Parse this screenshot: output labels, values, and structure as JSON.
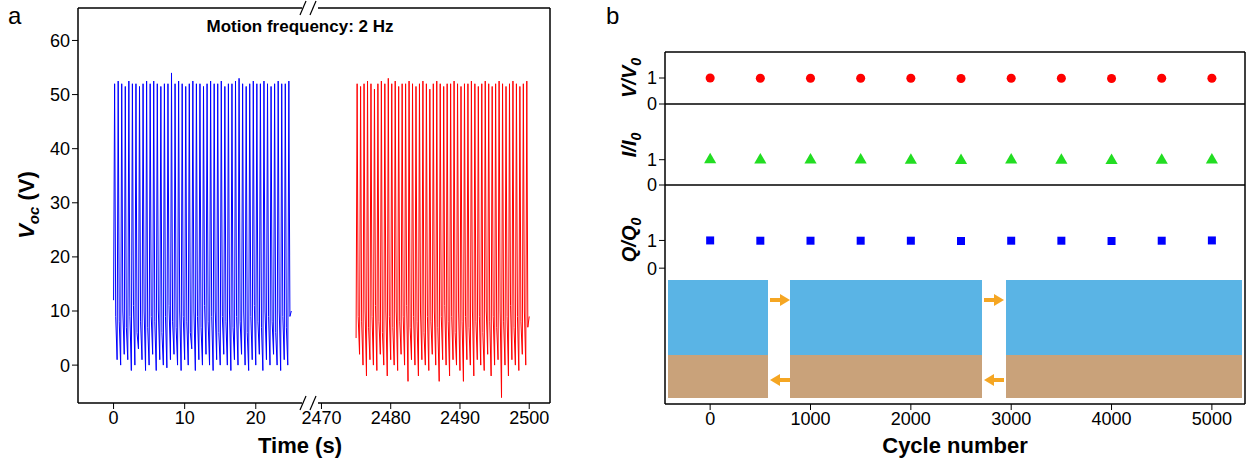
{
  "chart_data": [
    {
      "type": "line",
      "label": "a",
      "annotation": "Motion frequency: 2 Hz",
      "x_label": "Time (s)",
      "y_label": [
        "V",
        "oc",
        " (V)"
      ],
      "ylim": [
        -7,
        66
      ],
      "yticks": [
        0,
        10,
        20,
        30,
        40,
        50,
        60
      ],
      "segments": [
        {
          "xlim": [
            -5,
            26.5
          ],
          "xticks": [
            0,
            10,
            20
          ],
          "series": [
            {
              "color": "#0000ff",
              "x": [
                0,
                0.15,
                0.3,
                0.5,
                0.65,
                0.8,
                1,
                1.15,
                1.3,
                1.5,
                1.65,
                1.8,
                2,
                2.15,
                2.3,
                2.5,
                2.65,
                2.8,
                3,
                3.15,
                3.3,
                3.5,
                3.65,
                3.8,
                4,
                4.15,
                4.3,
                4.5,
                4.65,
                4.8,
                5,
                5.15,
                5.3,
                5.5,
                5.65,
                5.8,
                6,
                6.15,
                6.3,
                6.5,
                6.65,
                6.8,
                7,
                7.15,
                7.3,
                7.5,
                7.65,
                7.8,
                8,
                8.15,
                8.3,
                8.5,
                8.65,
                8.8,
                9,
                9.15,
                9.3,
                9.5,
                9.65,
                9.8,
                10,
                10.15,
                10.3,
                10.5,
                10.65,
                10.8,
                11,
                11.15,
                11.3,
                11.5,
                11.65,
                11.8,
                12,
                12.15,
                12.3,
                12.5,
                12.65,
                12.8,
                13,
                13.15,
                13.3,
                13.5,
                13.65,
                13.8,
                14,
                14.15,
                14.3,
                14.5,
                14.65,
                14.8,
                15,
                15.15,
                15.3,
                15.5,
                15.65,
                15.8,
                16,
                16.15,
                16.3,
                16.5,
                16.65,
                16.8,
                17,
                17.15,
                17.3,
                17.5,
                17.65,
                17.8,
                18,
                18.15,
                18.3,
                18.5,
                18.65,
                18.8,
                19,
                19.15,
                19.3,
                19.5,
                19.65,
                19.8,
                20,
                20.15,
                20.3,
                20.5,
                20.65,
                20.8,
                21,
                21.15,
                21.3,
                21.5,
                21.65,
                21.8,
                22,
                22.15,
                22.3,
                22.5,
                22.65,
                22.8,
                23,
                23.15,
                23.3,
                23.5,
                23.65,
                23.8,
                24,
                24.15,
                24.3,
                24.5,
                24.65,
                24.8,
                25
              ],
              "values": [
                12,
                52,
                9,
                1,
                52.5,
                8,
                0,
                52,
                10,
                2,
                51.5,
                7,
                1,
                52.5,
                9,
                -1,
                52,
                11,
                0,
                52,
                6,
                3,
                51.5,
                8,
                1,
                52,
                10,
                -1,
                52.5,
                7,
                0,
                52,
                9,
                2,
                52.5,
                8,
                -1,
                52,
                10,
                1,
                51.5,
                6,
                0,
                52,
                9,
                -0.5,
                52,
                11,
                1,
                54,
                8,
                2,
                52,
                7,
                0,
                52.5,
                10,
                -1,
                52,
                9,
                1,
                51.5,
                8,
                0,
                52,
                6,
                3,
                52.5,
                10,
                -1,
                52,
                9,
                1,
                52,
                7,
                0,
                51.5,
                11,
                2,
                52,
                8,
                0,
                52.5,
                9,
                -1,
                52,
                10,
                1,
                52,
                6,
                0,
                52.5,
                9,
                2,
                51.5,
                8,
                0,
                52,
                10,
                -1,
                52,
                7,
                1,
                52.5,
                9,
                0,
                53,
                8,
                2,
                52,
                10,
                0,
                51.5,
                6,
                -1,
                52,
                9,
                1,
                52.5,
                11,
                0,
                52,
                8,
                2,
                52,
                7,
                -1,
                52.5,
                10,
                1,
                52,
                9,
                0,
                51.5,
                8,
                2,
                52,
                6,
                0,
                52.5,
                10,
                -1,
                52,
                9,
                1,
                52,
                7,
                0,
                52.5,
                9,
                10
              ]
            }
          ]
        },
        {
          "xlim": [
            2469.5,
            2503
          ],
          "xticks": [
            2470,
            2480,
            2490,
            2500
          ],
          "series": [
            {
              "color": "#ff0000",
              "x": [
                2475,
                2475.15,
                2475.3,
                2475.5,
                2475.65,
                2475.8,
                2476,
                2476.15,
                2476.3,
                2476.5,
                2476.65,
                2476.8,
                2477,
                2477.15,
                2477.3,
                2477.5,
                2477.65,
                2477.8,
                2478,
                2478.15,
                2478.3,
                2478.5,
                2478.65,
                2478.8,
                2479,
                2479.15,
                2479.3,
                2479.5,
                2479.65,
                2479.8,
                2480,
                2480.15,
                2480.3,
                2480.5,
                2480.65,
                2480.8,
                2481,
                2481.15,
                2481.3,
                2481.5,
                2481.65,
                2481.8,
                2482,
                2482.15,
                2482.3,
                2482.5,
                2482.65,
                2482.8,
                2483,
                2483.15,
                2483.3,
                2483.5,
                2483.65,
                2483.8,
                2484,
                2484.15,
                2484.3,
                2484.5,
                2484.65,
                2484.8,
                2485,
                2485.15,
                2485.3,
                2485.5,
                2485.65,
                2485.8,
                2486,
                2486.15,
                2486.3,
                2486.5,
                2486.65,
                2486.8,
                2487,
                2487.15,
                2487.3,
                2487.5,
                2487.65,
                2487.8,
                2488,
                2488.15,
                2488.3,
                2488.5,
                2488.65,
                2488.8,
                2489,
                2489.15,
                2489.3,
                2489.5,
                2489.65,
                2489.8,
                2490,
                2490.15,
                2490.3,
                2490.5,
                2490.65,
                2490.8,
                2491,
                2491.15,
                2491.3,
                2491.5,
                2491.65,
                2491.8,
                2492,
                2492.15,
                2492.3,
                2492.5,
                2492.65,
                2492.8,
                2493,
                2493.15,
                2493.3,
                2493.5,
                2493.65,
                2493.8,
                2494,
                2494.15,
                2494.3,
                2494.5,
                2494.65,
                2494.8,
                2495,
                2495.15,
                2495.3,
                2495.5,
                2495.65,
                2495.8,
                2496,
                2496.15,
                2496.3,
                2496.5,
                2496.65,
                2496.8,
                2497,
                2497.15,
                2497.3,
                2497.5,
                2497.65,
                2497.8,
                2498,
                2498.15,
                2498.3,
                2498.5,
                2498.65,
                2498.8,
                2499,
                2499.15,
                2499.3,
                2499.5,
                2499.65,
                2499.8,
                2500
              ],
              "values": [
                5,
                52,
                9,
                2,
                51.5,
                8,
                0,
                52,
                10,
                -2,
                52.5,
                7,
                1,
                52,
                9,
                0,
                51,
                11,
                -1,
                52,
                8,
                2,
                52.5,
                6,
                0,
                52,
                10,
                -2,
                53,
                9,
                1,
                52,
                7,
                0,
                52.5,
                10,
                -1,
                51.5,
                8,
                2,
                52,
                9,
                0,
                52,
                11,
                -3,
                52.5,
                7,
                1,
                52,
                9,
                0,
                51.5,
                8,
                -2,
                52,
                10,
                1,
                52.5,
                6,
                0,
                52,
                9,
                -1,
                51,
                8,
                2,
                52,
                10,
                0,
                52.5,
                7,
                -3,
                52,
                9,
                1,
                51.5,
                11,
                0,
                52,
                8,
                -2,
                52,
                9,
                1,
                52.5,
                6,
                0,
                52,
                10,
                -1,
                51.5,
                8,
                -3,
                52,
                9,
                1,
                52,
                7,
                0,
                52.5,
                10,
                -2,
                52,
                8,
                1,
                51.5,
                9,
                0,
                52,
                6,
                -1,
                52.5,
                10,
                2,
                52,
                8,
                -2,
                51.5,
                9,
                0,
                52,
                7,
                1,
                52.5,
                10,
                -6,
                52,
                8,
                0,
                51.5,
                9,
                -2,
                52,
                11,
                1,
                52.5,
                7,
                0,
                52,
                9,
                -1,
                51.5,
                8,
                2,
                52,
                10,
                0,
                52.5,
                7,
                9
              ]
            }
          ]
        }
      ]
    },
    {
      "type": "scatter",
      "label": "b",
      "x_label": "Cycle number",
      "xlim": [
        -450,
        5330
      ],
      "xticks": [
        0,
        1000,
        2000,
        3000,
        4000,
        5000
      ],
      "x": [
        0,
        500,
        1000,
        1500,
        2000,
        2500,
        3000,
        3500,
        4000,
        4500,
        5000
      ],
      "panels": [
        {
          "y_label": [
            "V/V",
            "0"
          ],
          "ylim": [
            0,
            2
          ],
          "yticks": [
            0,
            1
          ],
          "series": [
            {
              "color": "#ff0000",
              "marker": "circle",
              "values": [
                1,
                0.99,
                0.99,
                0.99,
                0.99,
                0.98,
                0.99,
                0.99,
                0.98,
                0.99,
                0.99
              ]
            }
          ]
        },
        {
          "y_label": [
            "I/I",
            "0"
          ],
          "ylim": [
            0,
            3.2
          ],
          "yticks": [
            0,
            1
          ],
          "series": [
            {
              "color": "#22dd22",
              "marker": "triangle",
              "values": [
                1,
                0.99,
                0.99,
                0.99,
                0.98,
                0.97,
                0.99,
                0.98,
                0.97,
                0.98,
                0.99
              ]
            }
          ]
        },
        {
          "y_label": [
            "Q/Q",
            "0"
          ],
          "ylim": [
            -4.9,
            3
          ],
          "yticks": [
            0,
            1
          ],
          "series": [
            {
              "color": "#0000ff",
              "marker": "square",
              "values": [
                1,
                0.99,
                0.99,
                0.99,
                0.99,
                0.98,
                0.99,
                0.99,
                0.98,
                0.99,
                1
              ]
            }
          ]
        }
      ]
    }
  ]
}
